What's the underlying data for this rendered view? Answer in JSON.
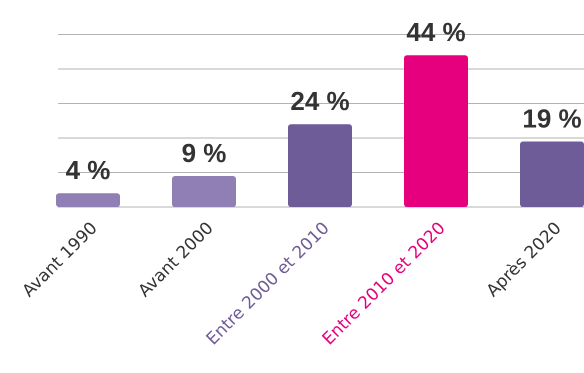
{
  "chart_data": {
    "type": "bar",
    "categories": [
      "Avant 1990",
      "Avant 2000",
      "Entre 2000 et 2010",
      "Entre 2010 et 2020",
      "Après 2020"
    ],
    "values": [
      4,
      9,
      24,
      44,
      19
    ],
    "value_labels": [
      "4 %",
      "9 %",
      "24 %",
      "44 %",
      "19 %"
    ],
    "ylim": [
      0,
      50
    ],
    "grid": true,
    "title": "",
    "xlabel": "",
    "ylabel": "",
    "colors": {
      "bars": [
        "#8f7fb5",
        "#8f7fb5",
        "#6e5c98",
        "#e6007e",
        "#6e5c98"
      ],
      "labels": [
        "#333333",
        "#333333",
        "#6e5c98",
        "#e6007e",
        "#333333"
      ],
      "grid": "#b3b3b3",
      "value_text": "#333333"
    }
  }
}
